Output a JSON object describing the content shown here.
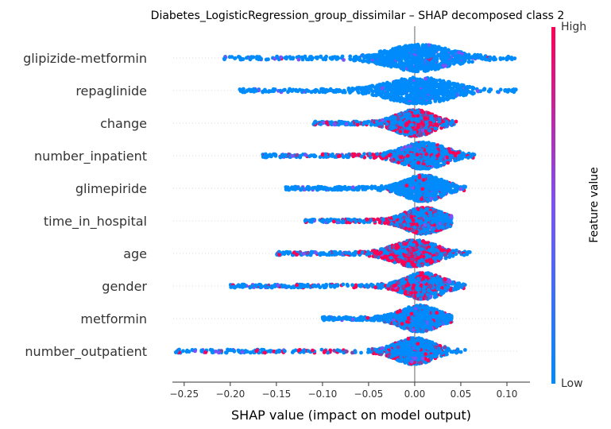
{
  "chart_data": {
    "type": "scatter",
    "subtype": "shap-beeswarm",
    "title": "Diabetes_LogisticRegression_group_dissimilar – SHAP decomposed class 2",
    "xlabel": "SHAP value (impact on model output)",
    "xlim": [
      -0.28,
      0.125
    ],
    "xticks": [
      -0.25,
      -0.2,
      -0.15,
      -0.1,
      -0.05,
      0.0,
      0.05,
      0.1
    ],
    "xtick_labels": [
      "−0.25",
      "−0.20",
      "−0.15",
      "−0.10",
      "−0.05",
      "0.00",
      "0.05",
      "0.10"
    ],
    "colorbar": {
      "label": "Feature value",
      "high_label": "High",
      "low_label": "Low",
      "low_color": "#008bfb",
      "mid_color": "#7c52f6",
      "high_color": "#ff0052"
    },
    "features": [
      {
        "name": "glipizide-metformin",
        "min": -0.21,
        "max": 0.11,
        "center": 0.005,
        "spread": 0.05,
        "red_center": -0.16,
        "red_amount": 0.02
      },
      {
        "name": "repaglinide",
        "min": -0.19,
        "max": 0.11,
        "center": 0.005,
        "spread": 0.05,
        "red_center": 0.0,
        "red_amount": 0.0
      },
      {
        "name": "change",
        "min": -0.11,
        "max": 0.045,
        "center": 0.0,
        "spread": 0.03,
        "red_center": 0.025,
        "red_amount": 0.45
      },
      {
        "name": "number_inpatient",
        "min": -0.165,
        "max": 0.065,
        "center": 0.01,
        "spread": 0.035,
        "red_center": -0.06,
        "red_amount": 0.4
      },
      {
        "name": "glimepiride",
        "min": -0.14,
        "max": 0.055,
        "center": 0.01,
        "spread": 0.03,
        "red_center": 0.01,
        "red_amount": 0.05
      },
      {
        "name": "time_in_hospital",
        "min": -0.12,
        "max": 0.04,
        "center": 0.01,
        "spread": 0.03,
        "red_center": -0.03,
        "red_amount": 0.35
      },
      {
        "name": "age",
        "min": -0.15,
        "max": 0.06,
        "center": 0.0,
        "spread": 0.035,
        "red_center": -0.02,
        "red_amount": 0.45
      },
      {
        "name": "gender",
        "min": -0.2,
        "max": 0.055,
        "center": 0.01,
        "spread": 0.03,
        "red_center": -0.01,
        "red_amount": 0.3
      },
      {
        "name": "metformin",
        "min": -0.1,
        "max": 0.04,
        "center": 0.005,
        "spread": 0.03,
        "red_center": 0.0,
        "red_amount": 0.08
      },
      {
        "name": "number_outpatient",
        "min": -0.26,
        "max": 0.055,
        "center": 0.0,
        "spread": 0.03,
        "red_center": -0.09,
        "red_amount": 0.35
      }
    ]
  }
}
